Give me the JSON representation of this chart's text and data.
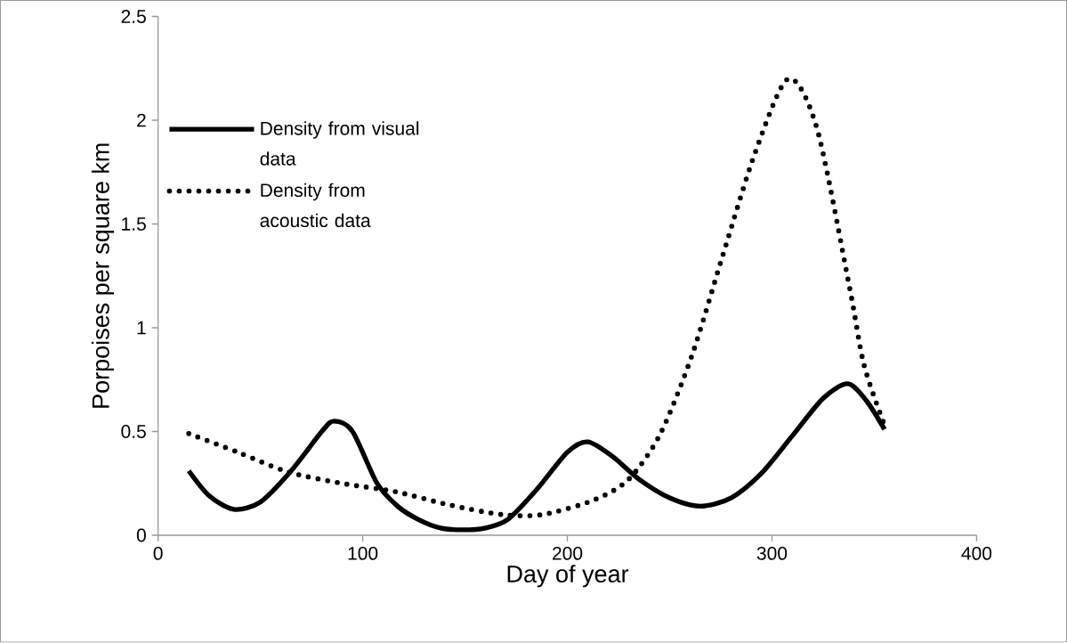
{
  "chart_data": {
    "type": "line",
    "xlabel": "Day of year",
    "ylabel": "Porpoises per square km",
    "xlim": [
      0,
      400
    ],
    "xticks": [
      0,
      100,
      200,
      300,
      400
    ],
    "ylim": [
      0,
      2.5
    ],
    "yticks": [
      0,
      0.5,
      1,
      1.5,
      2,
      2.5
    ],
    "grid": false,
    "legend": "left",
    "series": [
      {
        "name": "Density from visual data",
        "color": "#000000",
        "line_style": "solid",
        "x": [
          15,
          25,
          37,
          50,
          65,
          80,
          86,
          95,
          107,
          117,
          127,
          138,
          149,
          160,
          171,
          185,
          200,
          210,
          222,
          235,
          250,
          265,
          280,
          295,
          310,
          325,
          337,
          346,
          355
        ],
        "values": [
          0.31,
          0.19,
          0.125,
          0.16,
          0.31,
          0.5,
          0.55,
          0.5,
          0.25,
          0.14,
          0.077,
          0.035,
          0.026,
          0.035,
          0.077,
          0.22,
          0.4,
          0.45,
          0.38,
          0.27,
          0.18,
          0.14,
          0.18,
          0.3,
          0.48,
          0.66,
          0.73,
          0.65,
          0.51
        ]
      },
      {
        "name": "Density from acoustic data",
        "color": "#000000",
        "line_style": "dotted",
        "x": [
          15,
          39,
          63.5,
          90,
          116,
          142,
          168,
          188,
          213,
          230,
          245.5,
          261,
          276,
          292,
          308,
          322,
          338,
          345,
          355
        ],
        "values": [
          0.49,
          0.4,
          0.305,
          0.25,
          0.21,
          0.147,
          0.1,
          0.1,
          0.17,
          0.27,
          0.49,
          0.87,
          1.35,
          1.85,
          2.2,
          1.96,
          1.19,
          0.82,
          0.53
        ]
      }
    ]
  }
}
